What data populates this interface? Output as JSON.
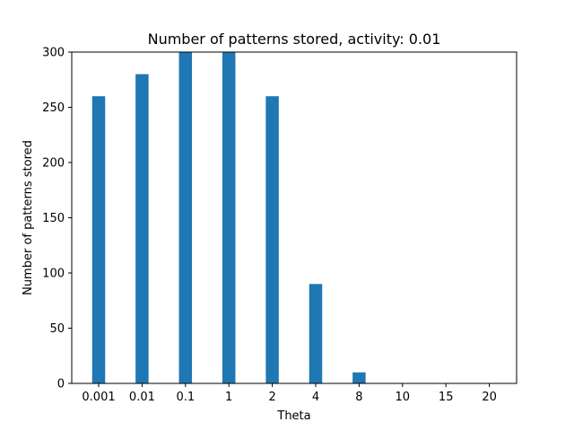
{
  "chart_data": {
    "type": "bar",
    "title": "Number of patterns stored, activity: 0.01",
    "xlabel": "Theta",
    "ylabel": "Number of patterns stored",
    "categories": [
      "0.001",
      "0.01",
      "0.1",
      "1",
      "2",
      "4",
      "8",
      "10",
      "15",
      "20"
    ],
    "values": [
      260,
      280,
      300,
      300,
      260,
      90,
      10,
      0,
      0,
      0
    ],
    "ylim": [
      0,
      300
    ],
    "yticks": [
      0,
      50,
      100,
      150,
      200,
      250,
      300
    ],
    "bar_color": "#1f77b4",
    "grid": false,
    "legend": false
  }
}
